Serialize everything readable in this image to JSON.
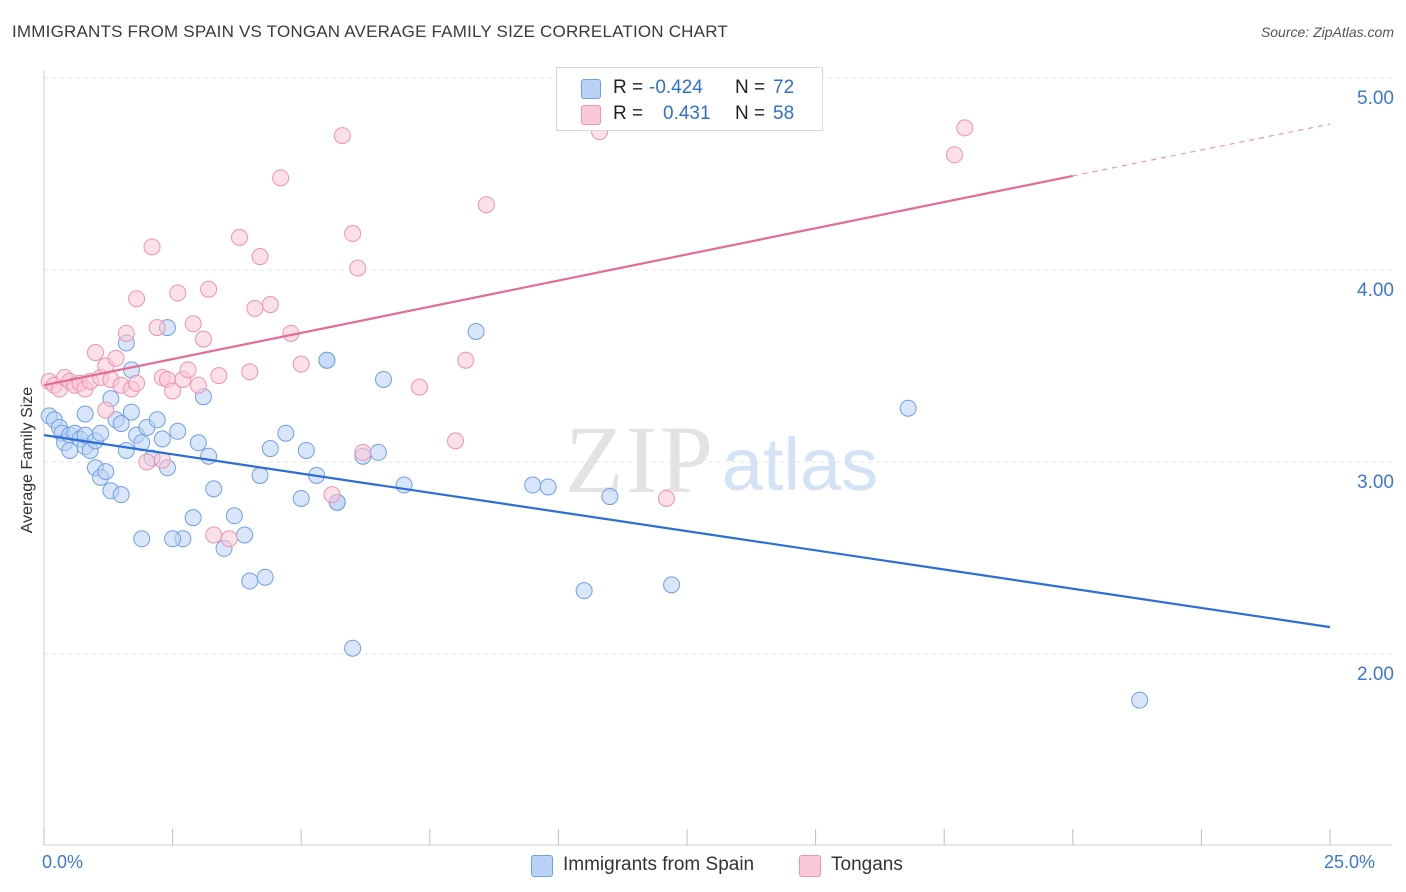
{
  "title": "IMMIGRANTS FROM SPAIN VS TONGAN AVERAGE FAMILY SIZE CORRELATION CHART",
  "source": "Source: ZipAtlas.com",
  "watermark": {
    "zip": "ZIP",
    "atlas": "atlas"
  },
  "legend_stats": [
    {
      "r_label": "R =",
      "r_value": "-0.424",
      "n_label": "N =",
      "n_value": "72",
      "color": "#a9c7f2"
    },
    {
      "r_label": "R =",
      "r_value": "0.431",
      "n_label": "N =",
      "n_value": "58",
      "color": "#f7b8cb"
    }
  ],
  "chart_data": {
    "type": "scatter",
    "title": "IMMIGRANTS FROM SPAIN VS TONGAN AVERAGE FAMILY SIZE CORRELATION CHART",
    "xlabel": "",
    "ylabel": "Average Family Size",
    "xlim": [
      0,
      25
    ],
    "ylim": [
      1.0,
      5.2
    ],
    "x_tick_labels": [
      "0.0%",
      "25.0%"
    ],
    "y_ticks": [
      2.0,
      3.0,
      4.0,
      5.0
    ],
    "y_tick_labels": [
      "2.00",
      "3.00",
      "4.00",
      "5.00"
    ],
    "grid": true,
    "legend_position": "bottom",
    "series": [
      {
        "name": "Immigrants from Spain",
        "color": "#6fa0e6",
        "fill": "#b9d2f5",
        "trend": {
          "x": [
            0,
            25
          ],
          "y": [
            3.14,
            2.14
          ],
          "color": "#2b6fd6"
        },
        "points": [
          [
            0.1,
            3.24
          ],
          [
            0.2,
            3.22
          ],
          [
            0.3,
            3.18
          ],
          [
            0.35,
            3.15
          ],
          [
            0.4,
            3.1
          ],
          [
            0.5,
            3.14
          ],
          [
            0.5,
            3.06
          ],
          [
            0.6,
            3.15
          ],
          [
            0.7,
            3.12
          ],
          [
            0.8,
            3.08
          ],
          [
            0.8,
            3.14
          ],
          [
            0.9,
            3.06
          ],
          [
            1.0,
            3.11
          ],
          [
            1.0,
            2.97
          ],
          [
            1.1,
            2.92
          ],
          [
            1.2,
            2.95
          ],
          [
            1.3,
            3.33
          ],
          [
            1.3,
            2.85
          ],
          [
            1.4,
            3.22
          ],
          [
            1.5,
            3.2
          ],
          [
            1.5,
            2.83
          ],
          [
            1.6,
            3.06
          ],
          [
            1.7,
            3.26
          ],
          [
            1.8,
            3.14
          ],
          [
            1.9,
            3.1
          ],
          [
            2.0,
            3.18
          ],
          [
            2.1,
            3.02
          ],
          [
            2.2,
            3.22
          ],
          [
            2.3,
            3.12
          ],
          [
            2.4,
            2.97
          ],
          [
            2.6,
            3.16
          ],
          [
            2.7,
            2.6
          ],
          [
            2.9,
            2.71
          ],
          [
            3.0,
            3.1
          ],
          [
            3.1,
            3.34
          ],
          [
            3.2,
            3.03
          ],
          [
            3.3,
            2.86
          ],
          [
            3.5,
            2.55
          ],
          [
            3.7,
            2.72
          ],
          [
            3.9,
            2.62
          ],
          [
            4.0,
            2.38
          ],
          [
            4.2,
            2.93
          ],
          [
            4.3,
            2.4
          ],
          [
            4.4,
            3.07
          ],
          [
            4.7,
            3.15
          ],
          [
            5.0,
            2.81
          ],
          [
            5.1,
            3.06
          ],
          [
            5.3,
            2.93
          ],
          [
            5.5,
            3.53
          ],
          [
            5.7,
            2.79
          ],
          [
            6.0,
            2.03
          ],
          [
            6.2,
            3.03
          ],
          [
            6.5,
            3.05
          ],
          [
            6.6,
            3.43
          ],
          [
            7.0,
            2.88
          ],
          [
            8.4,
            3.68
          ],
          [
            9.5,
            2.88
          ],
          [
            9.8,
            2.87
          ],
          [
            10.5,
            2.33
          ],
          [
            11.0,
            2.82
          ],
          [
            12.2,
            2.36
          ],
          [
            16.8,
            3.28
          ],
          [
            21.3,
            1.76
          ],
          [
            1.1,
            3.15
          ],
          [
            2.4,
            3.7
          ],
          [
            1.6,
            3.62
          ],
          [
            1.7,
            3.48
          ],
          [
            2.5,
            2.6
          ],
          [
            5.5,
            3.53
          ],
          [
            5.7,
            2.79
          ],
          [
            1.9,
            2.6
          ],
          [
            0.8,
            3.25
          ]
        ]
      },
      {
        "name": "Tongans",
        "color": "#ef93ae",
        "fill": "#f9c7d5",
        "trend": {
          "x": [
            0,
            20.0
          ],
          "y": [
            3.4,
            4.49
          ],
          "dash_x": [
            20.0,
            25
          ],
          "dash_y": [
            4.49,
            4.76
          ],
          "color": "#e46b93"
        },
        "points": [
          [
            0.1,
            3.42
          ],
          [
            0.2,
            3.4
          ],
          [
            0.3,
            3.38
          ],
          [
            0.4,
            3.44
          ],
          [
            0.5,
            3.42
          ],
          [
            0.6,
            3.4
          ],
          [
            0.7,
            3.41
          ],
          [
            0.8,
            3.38
          ],
          [
            0.9,
            3.42
          ],
          [
            1.0,
            3.57
          ],
          [
            1.1,
            3.44
          ],
          [
            1.2,
            3.5
          ],
          [
            1.2,
            3.27
          ],
          [
            1.3,
            3.43
          ],
          [
            1.4,
            3.54
          ],
          [
            1.5,
            3.4
          ],
          [
            1.6,
            3.67
          ],
          [
            1.7,
            3.38
          ],
          [
            1.8,
            3.41
          ],
          [
            1.8,
            3.85
          ],
          [
            2.0,
            3.0
          ],
          [
            2.1,
            4.12
          ],
          [
            2.2,
            3.7
          ],
          [
            2.3,
            3.44
          ],
          [
            2.4,
            3.43
          ],
          [
            2.5,
            3.37
          ],
          [
            2.6,
            3.88
          ],
          [
            2.7,
            3.43
          ],
          [
            2.8,
            3.48
          ],
          [
            2.9,
            3.72
          ],
          [
            3.0,
            3.4
          ],
          [
            3.1,
            3.64
          ],
          [
            3.2,
            3.9
          ],
          [
            3.3,
            2.62
          ],
          [
            3.4,
            3.45
          ],
          [
            3.6,
            2.6
          ],
          [
            3.8,
            4.17
          ],
          [
            4.0,
            3.47
          ],
          [
            4.1,
            3.8
          ],
          [
            4.2,
            4.07
          ],
          [
            4.4,
            3.82
          ],
          [
            4.6,
            4.48
          ],
          [
            4.8,
            3.67
          ],
          [
            5.0,
            3.51
          ],
          [
            5.6,
            2.83
          ],
          [
            5.8,
            4.7
          ],
          [
            6.0,
            4.19
          ],
          [
            6.1,
            4.01
          ],
          [
            6.2,
            3.05
          ],
          [
            7.3,
            3.39
          ],
          [
            8.0,
            3.11
          ],
          [
            8.2,
            3.53
          ],
          [
            8.6,
            4.34
          ],
          [
            10.8,
            4.72
          ],
          [
            12.1,
            2.81
          ],
          [
            17.7,
            4.6
          ],
          [
            17.9,
            4.74
          ],
          [
            2.3,
            3.01
          ]
        ]
      }
    ]
  },
  "legend_bottom": [
    {
      "label": "Immigrants from Spain",
      "color": "#b9d2f5",
      "border": "#6fa0e6"
    },
    {
      "label": "Tongans",
      "color": "#f9c7d5",
      "border": "#ef93ae"
    }
  ]
}
